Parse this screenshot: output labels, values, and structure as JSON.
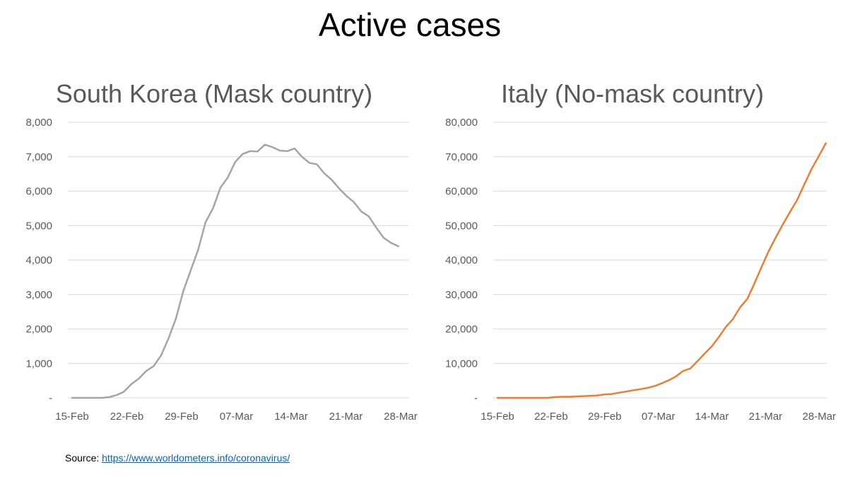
{
  "title": "Active cases",
  "source": {
    "label": "Source:",
    "link": "https://www.worldometers.info/coronavirus/"
  },
  "chart_data": [
    {
      "type": "line",
      "title": "South Korea (Mask country)",
      "color": "#a5a5a5",
      "ylim": [
        0,
        8000
      ],
      "y_ticks": [
        "-",
        "1,000",
        "2,000",
        "3,000",
        "4,000",
        "5,000",
        "6,000",
        "7,000",
        "8,000"
      ],
      "x_ticks": [
        "15-Feb",
        "22-Feb",
        "29-Feb",
        "07-Mar",
        "14-Mar",
        "21-Mar",
        "28-Mar"
      ],
      "x_start": "15-Feb",
      "x_end": "29-Mar",
      "grid": true,
      "series": [
        {
          "values": [
            0,
            0,
            0,
            0,
            0,
            20,
            80,
            180,
            400,
            560,
            780,
            920,
            1230,
            1720,
            2300,
            3100,
            3700,
            4300,
            5100,
            5500,
            6100,
            6400,
            6850,
            7080,
            7160,
            7150,
            7350,
            7280,
            7180,
            7160,
            7240,
            7000,
            6820,
            6780,
            6520,
            6330,
            6080,
            5860,
            5680,
            5410,
            5270,
            4950,
            4650,
            4500,
            4400
          ]
        }
      ]
    },
    {
      "type": "line",
      "title": "Italy (No-mask country)",
      "color": "#ed7d31",
      "ylim": [
        0,
        80000
      ],
      "y_ticks": [
        "-",
        "10,000",
        "20,000",
        "30,000",
        "40,000",
        "50,000",
        "60,000",
        "70,000",
        "80,000"
      ],
      "x_ticks": [
        "15-Feb",
        "22-Feb",
        "29-Feb",
        "07-Mar",
        "14-Mar",
        "21-Mar",
        "28-Mar"
      ],
      "x_start": "15-Feb",
      "x_end": "29-Mar",
      "grid": true,
      "series": [
        {
          "values": [
            3,
            3,
            3,
            3,
            3,
            3,
            3,
            3,
            200,
            300,
            300,
            400,
            500,
            600,
            700,
            1000,
            1100,
            1500,
            1800,
            2200,
            2500,
            2900,
            3400,
            4200,
            5100,
            6200,
            7800,
            8500,
            10600,
            12800,
            14900,
            17600,
            20600,
            22900,
            26300,
            28700,
            33200,
            38000,
            42600,
            46600,
            50400,
            54000,
            57500,
            62000,
            66400,
            70100,
            73900
          ]
        }
      ]
    }
  ]
}
